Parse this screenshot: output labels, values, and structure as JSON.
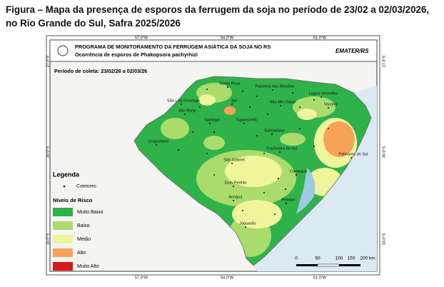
{
  "caption": "Figura – Mapa da presença de esporos da ferrugem da soja no período de 23/02 a 02/03/2026, no Rio Grande do Sul, Safra 2025/2026",
  "header": {
    "title": "PROGRAMA DE MONITORAMENTO DA FERRUGEM ASIÁTICA DA SOJA NO RS",
    "subtitle": "Ocorrência de esporos de Phakopsora pachyrhizi",
    "logo": "EMATER/RS"
  },
  "period": "Período de coleta: 23/02/26 a 02/03/26",
  "longitudes": [
    "57.0°W",
    "54.0°W",
    "51.0°W"
  ],
  "latitudes": [
    "27.0°S",
    "30.0°S",
    "33.0°S"
  ],
  "cities": [
    "Santa Rosa",
    "Palmeira das Missões",
    "Lagoa Vermelha",
    "São Luiz Gonzaga",
    "Ijuí",
    "Não-Me-Toque",
    "Vacaria",
    "São Borja",
    "Santiago",
    "Tupanciretã",
    "Sobradinho",
    "Uruguaiana",
    "Cachoeira do Sul",
    "Palmares do Sul",
    "São Gabriel",
    "Camaquã",
    "Dom Pedrito",
    "Aceguá",
    "Pelotas",
    "Jaguarão"
  ],
  "legend": {
    "title": "Legenda",
    "collectors": "Coletores",
    "levels_title": "Níveis de Risco",
    "levels": [
      {
        "name": "Muito Baixo",
        "color": "#2fb24a"
      },
      {
        "name": "Baixo",
        "color": "#a9dc6c"
      },
      {
        "name": "Médio",
        "color": "#eef59a"
      },
      {
        "name": "Alto",
        "color": "#f6a25a"
      },
      {
        "name": "Muito Alto",
        "color": "#d7191c"
      }
    ]
  },
  "scale_bar": [
    "0",
    "50",
    "100",
    "150",
    "200 km"
  ]
}
